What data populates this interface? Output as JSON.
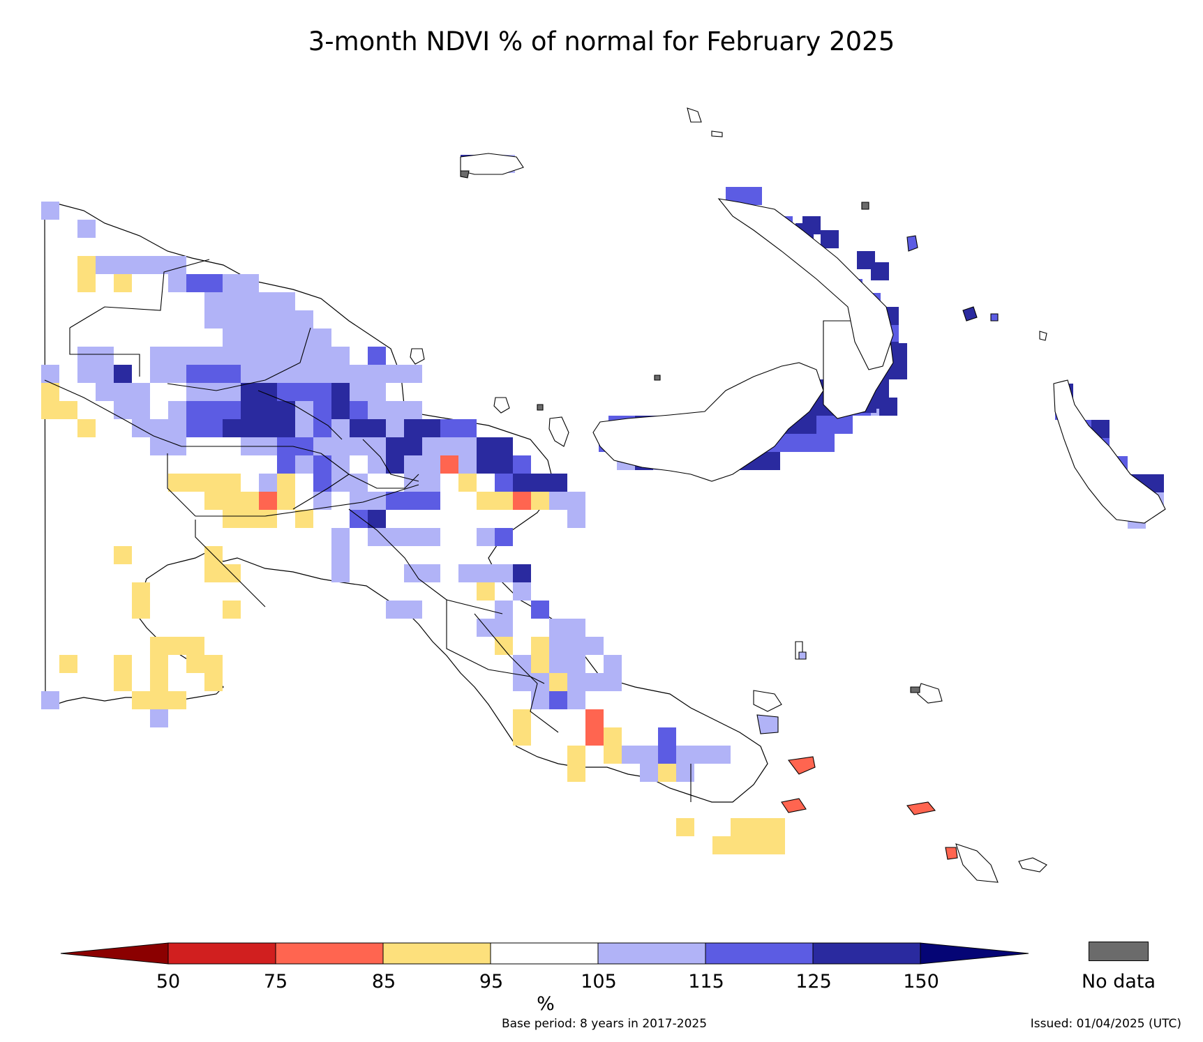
{
  "title": "3-month NDVI % of normal for February 2025",
  "colors": {
    "c50": "#8b0000",
    "c75": "#d11f1f",
    "c85": "#ff6550",
    "c95": "#fde07c",
    "c105": "#ffffff",
    "c115": "#b1b3f7",
    "c125": "#5c5ce3",
    "c150": "#2a2a9f",
    "c150plus": "#050575",
    "nodata": "#6b6b6b"
  },
  "legend": {
    "ticks": [
      "50",
      "75",
      "85",
      "95",
      "105",
      "115",
      "125",
      "150"
    ],
    "unit": "%",
    "nodata_label": "No data"
  },
  "footer": {
    "base_period": "Base period: 8 years in 2017-2025",
    "issued": "Issued: 01/04/2025 (UTC)"
  }
}
